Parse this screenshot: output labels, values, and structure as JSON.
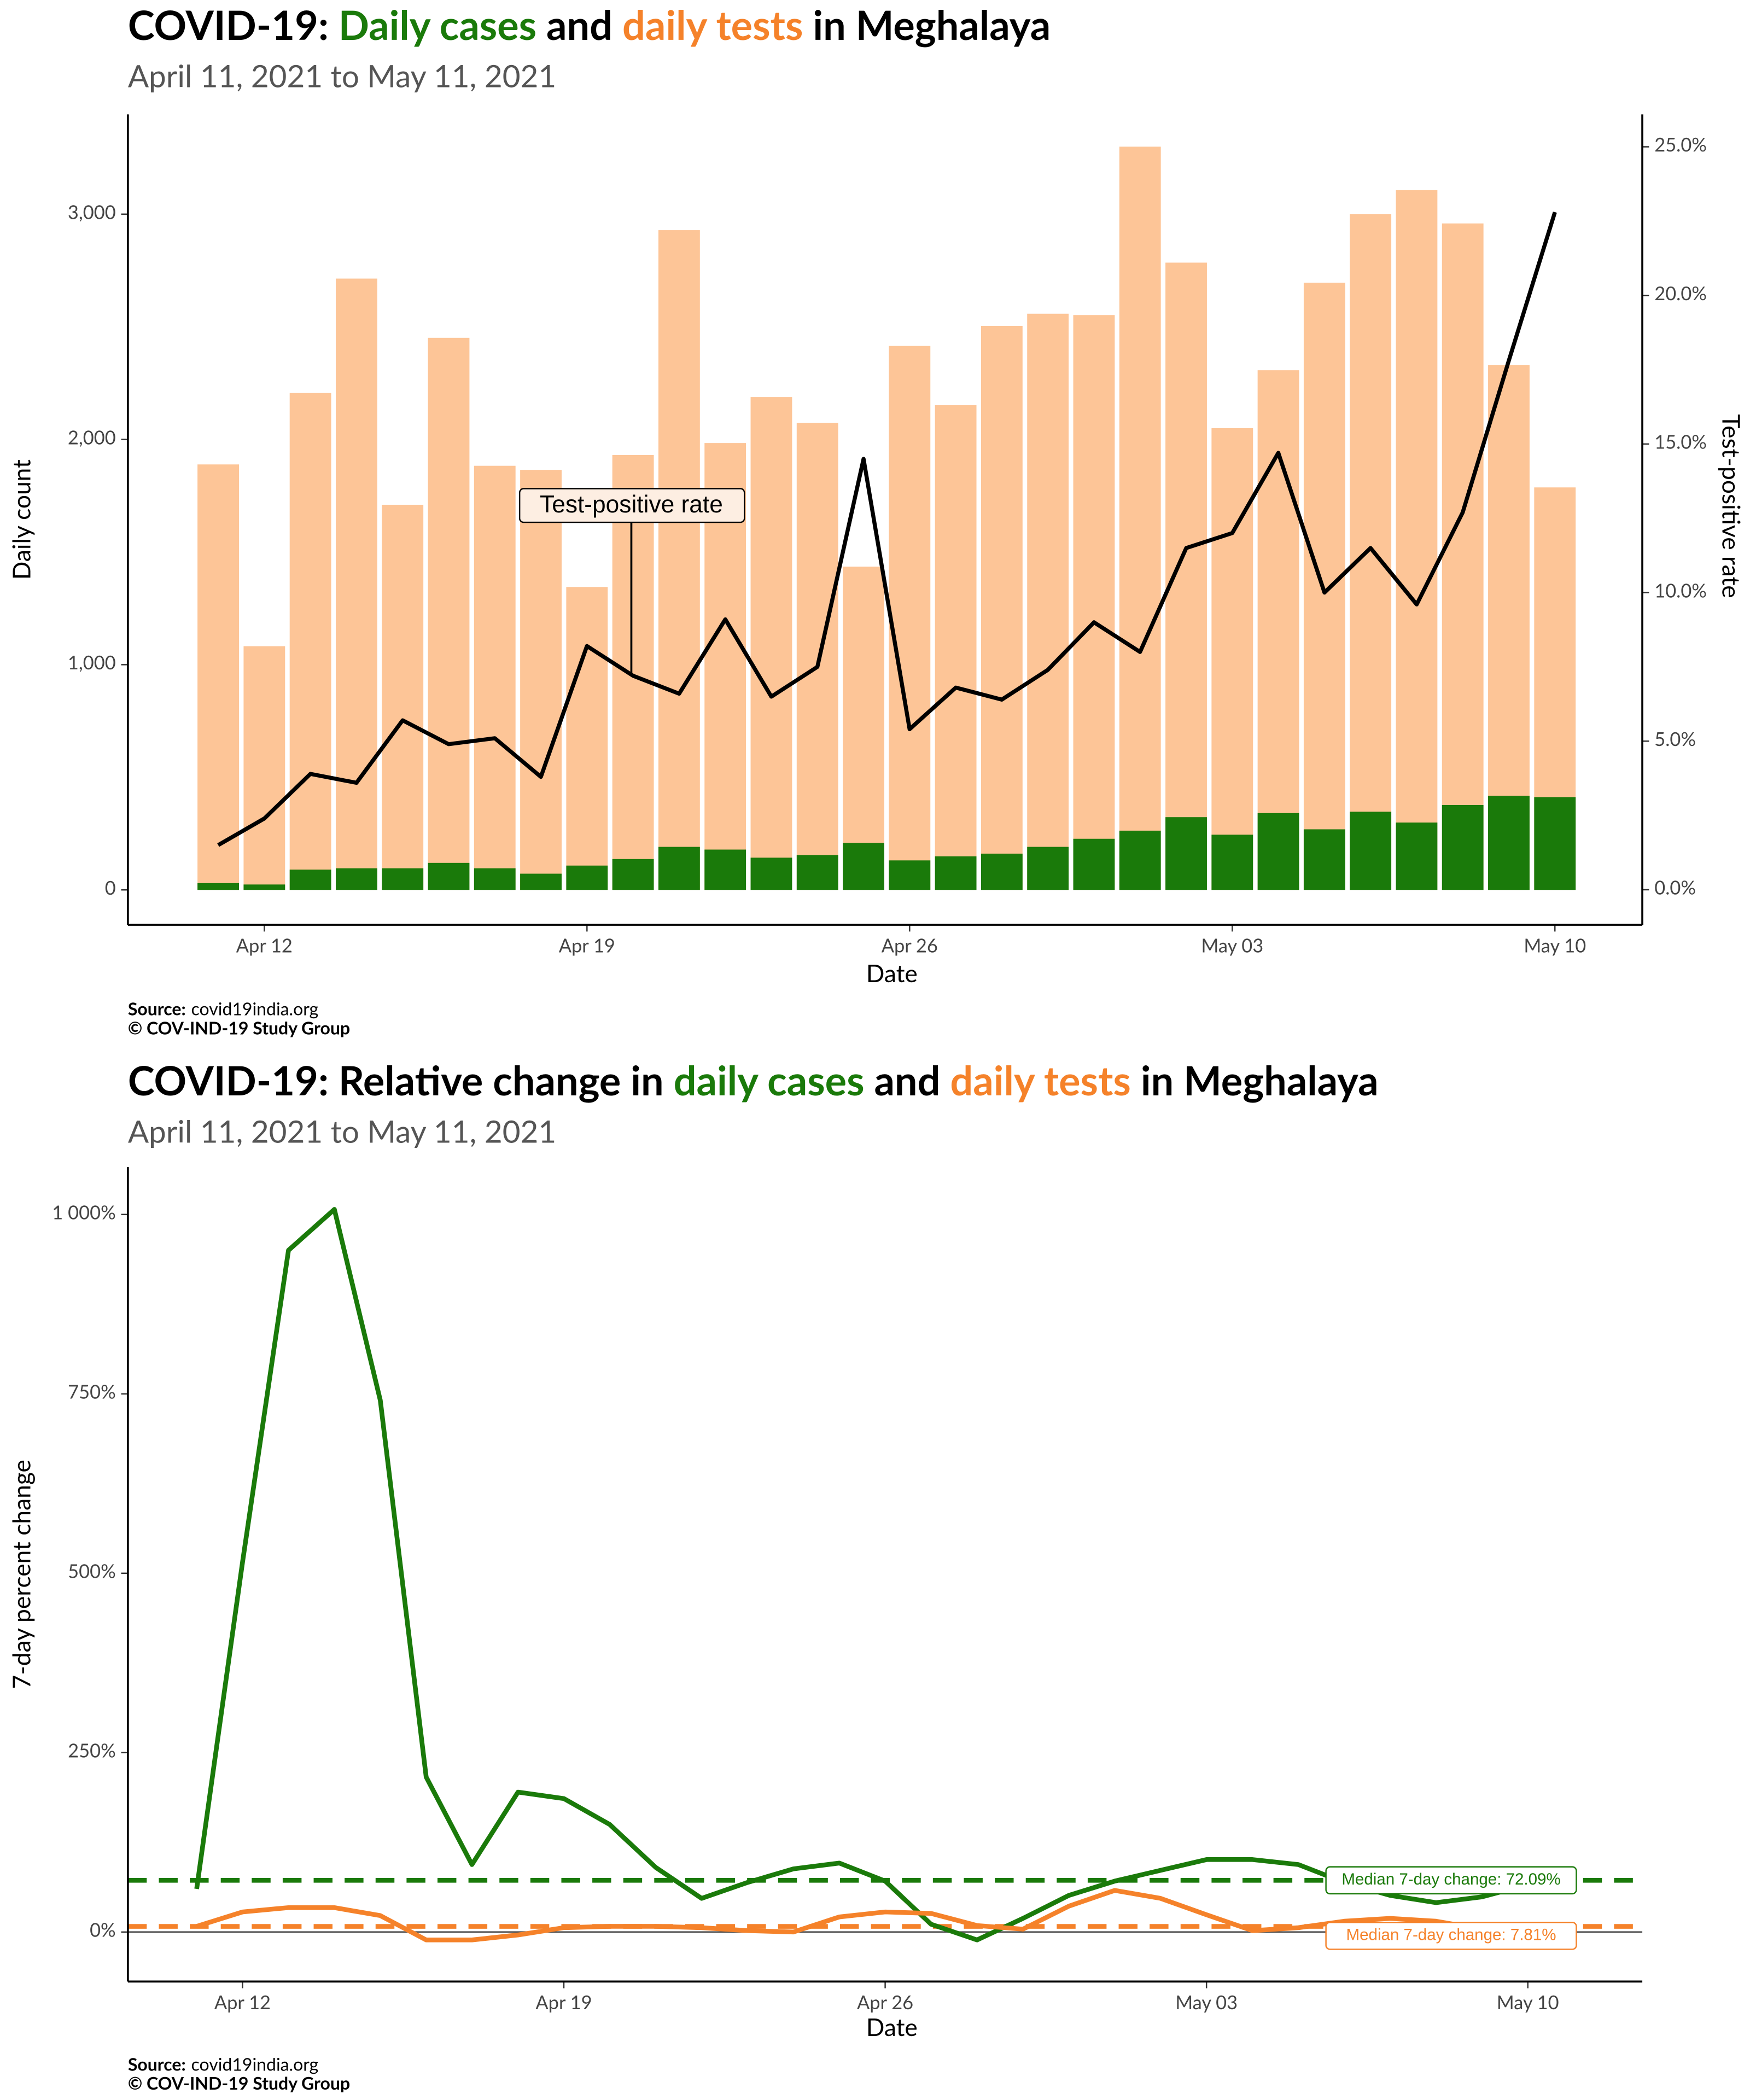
{
  "chart_data": [
    {
      "type": "bar",
      "title_parts": [
        {
          "text": "COVID-19: "
        },
        {
          "text": "Daily cases",
          "color": "#1a7a0a"
        },
        {
          "text": " and "
        },
        {
          "text": "daily tests",
          "color": "#f5822a"
        },
        {
          "text": " in Meghalaya"
        }
      ],
      "subtitle": "April 11, 2021 to May 11, 2021",
      "x_label": "Date",
      "y_label": "Daily count",
      "y2_label": "Test-positive rate",
      "categories": [
        null,
        "Apr 12",
        null,
        null,
        null,
        null,
        null,
        null,
        "Apr 19",
        null,
        null,
        null,
        null,
        null,
        null,
        "Apr 26",
        null,
        null,
        null,
        null,
        null,
        null,
        "May 03",
        null,
        null,
        null,
        null,
        null,
        null,
        "May 10"
      ],
      "series": [
        {
          "type": "bar",
          "color": "#fdc597",
          "values": [
            1889,
            1082,
            2206,
            2714,
            1710,
            2451,
            1883,
            1865,
            1345,
            1931,
            2929,
            1984,
            2188,
            2074,
            1435,
            2415,
            2152,
            2504,
            2558,
            2552,
            3300,
            2785,
            2050,
            2307,
            2696,
            3001,
            3108,
            2959,
            2331,
            1787
          ]
        },
        {
          "type": "bar",
          "color": "#1a7a0a",
          "values": [
            30,
            24,
            90,
            96,
            96,
            120,
            96,
            72,
            108,
            137,
            191,
            179,
            143,
            155,
            209,
            131,
            149,
            161,
            191,
            227,
            263,
            323,
            245,
            341,
            269,
            347,
            299,
            377,
            418,
            412
          ]
        },
        {
          "type": "line",
          "axis": "y2",
          "color": "#000000",
          "values": [
            1.5,
            2.4,
            3.9,
            3.6,
            5.7,
            4.9,
            5.1,
            3.8,
            8.2,
            7.2,
            6.6,
            9.1,
            6.5,
            7.5,
            14.5,
            5.4,
            6.8,
            6.4,
            7.4,
            9.0,
            8.0,
            11.5,
            12.0,
            14.7,
            10.0,
            11.5,
            9.6,
            12.7,
            17.8,
            22.8
          ]
        }
      ],
      "ylim": [
        -155,
        3443
      ],
      "yticks": [
        0,
        {
          "value": 1000,
          "label": "1,000"
        },
        {
          "value": 2000,
          "label": "2,000"
        },
        {
          "value": 3000,
          "label": "3,000"
        }
      ],
      "y2lim": [
        -1.18,
        26.09
      ],
      "y2ticks": [
        {
          "value": 0,
          "label": "0.0%"
        },
        {
          "value": 5,
          "label": "5.0%"
        },
        {
          "value": 10,
          "label": "10.0%"
        },
        {
          "value": 15,
          "label": "15.0%"
        },
        {
          "value": 20,
          "label": "20.0%"
        },
        {
          "value": 25,
          "label": "25.0%"
        }
      ],
      "annotation": "Test-positive rate",
      "source_label": "Source:",
      "source": "covid19india.org",
      "credit": "© COV-IND-19 Study Group"
    },
    {
      "type": "line",
      "title_parts": [
        {
          "text": "COVID-19: Relative change in "
        },
        {
          "text": "daily cases",
          "color": "#1a7a0a"
        },
        {
          "text": " and "
        },
        {
          "text": "daily tests",
          "color": "#f5822a"
        },
        {
          "text": " in Meghalaya"
        }
      ],
      "subtitle": "April 11, 2021 to May 11, 2021",
      "x_label": "Date",
      "y_label": "7-day percent change",
      "categories": [
        null,
        "Apr 12",
        null,
        null,
        null,
        null,
        null,
        null,
        "Apr 19",
        null,
        null,
        null,
        null,
        null,
        null,
        "Apr 26",
        null,
        null,
        null,
        null,
        null,
        null,
        "May 03",
        null,
        null,
        null,
        null,
        null,
        null,
        "May 10"
      ],
      "series": [
        {
          "color": "#1a7a0a",
          "values": [
            60,
            516,
            950,
            1007,
            741,
            216,
            94,
            195,
            186,
            150,
            90,
            47,
            69,
            88,
            96,
            71,
            11,
            -11,
            19,
            51,
            71,
            86,
            101,
            101,
            94,
            69,
            51,
            41,
            49,
            66
          ]
        },
        {
          "color": "#f5822a",
          "values": [
            8,
            28,
            34,
            34,
            23,
            -11,
            -11,
            -4,
            6,
            8,
            8,
            6,
            2,
            0,
            21,
            28,
            26,
            9,
            4,
            36,
            58,
            47,
            24,
            2,
            6,
            15,
            19,
            15,
            4,
            -17
          ]
        }
      ],
      "medians": [
        {
          "value": 72.09,
          "label": "Median 7-day change: 72.09%",
          "color": "#1a7a0a"
        },
        {
          "value": 7.81,
          "label": "Median 7-day change: 7.81%",
          "color": "#f5822a"
        }
      ],
      "ylim": [
        -69,
        1066
      ],
      "yticks": [
        {
          "value": 0,
          "label": "0%"
        },
        {
          "value": 250,
          "label": "250%"
        },
        {
          "value": 500,
          "label": "500%"
        },
        {
          "value": 750,
          "label": "750%"
        },
        {
          "value": 1000,
          "label": "1 000%"
        }
      ],
      "source_label": "Source:",
      "source": "covid19india.org",
      "credit": "© COV-IND-19 Study Group"
    }
  ]
}
